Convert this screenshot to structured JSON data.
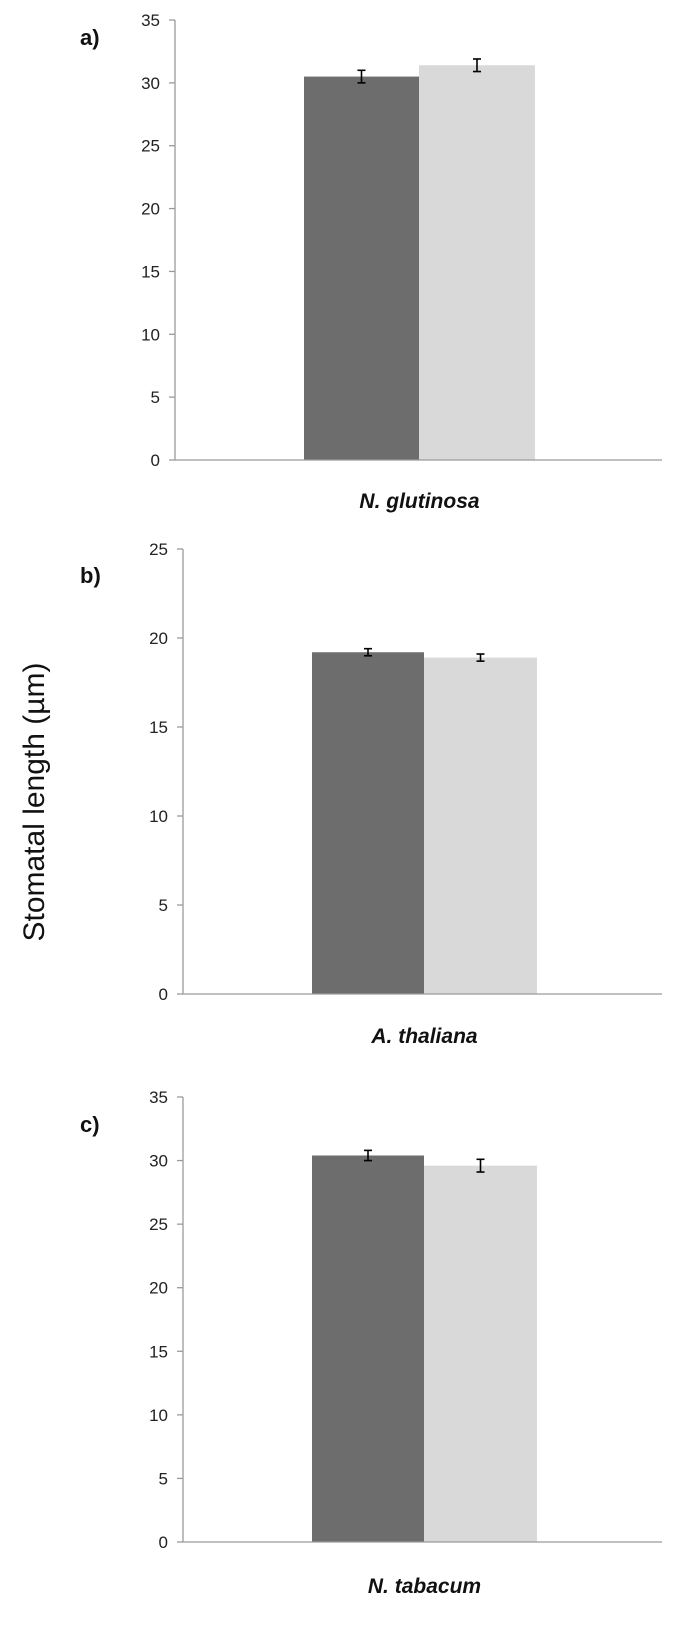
{
  "ylabel": "Stomatal length (µm)",
  "colors": {
    "series_dark": "#6d6d6d",
    "series_light": "#d9d9d9",
    "axis": "#9a9a9a"
  },
  "chart_data": [
    {
      "type": "bar",
      "panel_label": "a)",
      "xlabel": "N. glutinosa",
      "ylim": [
        0,
        35
      ],
      "yticks": [
        0,
        5,
        10,
        15,
        20,
        25,
        30,
        35
      ],
      "grid": false,
      "series": [
        {
          "values": [
            30.5
          ],
          "errors": [
            0.5
          ],
          "color": "#6d6d6d"
        },
        {
          "values": [
            31.4
          ],
          "errors": [
            0.5
          ],
          "color": "#d9d9d9"
        }
      ]
    },
    {
      "type": "bar",
      "panel_label": "b)",
      "xlabel": "A. thaliana",
      "ylim": [
        0,
        25
      ],
      "yticks": [
        0,
        5,
        10,
        15,
        20,
        25
      ],
      "grid": false,
      "series": [
        {
          "values": [
            19.2
          ],
          "errors": [
            0.2
          ],
          "color": "#6d6d6d"
        },
        {
          "values": [
            18.9
          ],
          "errors": [
            0.2
          ],
          "color": "#d9d9d9"
        }
      ]
    },
    {
      "type": "bar",
      "panel_label": "c)",
      "xlabel": "N. tabacum",
      "ylim": [
        0,
        35
      ],
      "yticks": [
        0,
        5,
        10,
        15,
        20,
        25,
        30,
        35
      ],
      "grid": false,
      "series": [
        {
          "values": [
            30.4
          ],
          "errors": [
            0.4
          ],
          "color": "#6d6d6d"
        },
        {
          "values": [
            29.6
          ],
          "errors": [
            0.5
          ],
          "color": "#d9d9d9"
        }
      ]
    }
  ]
}
